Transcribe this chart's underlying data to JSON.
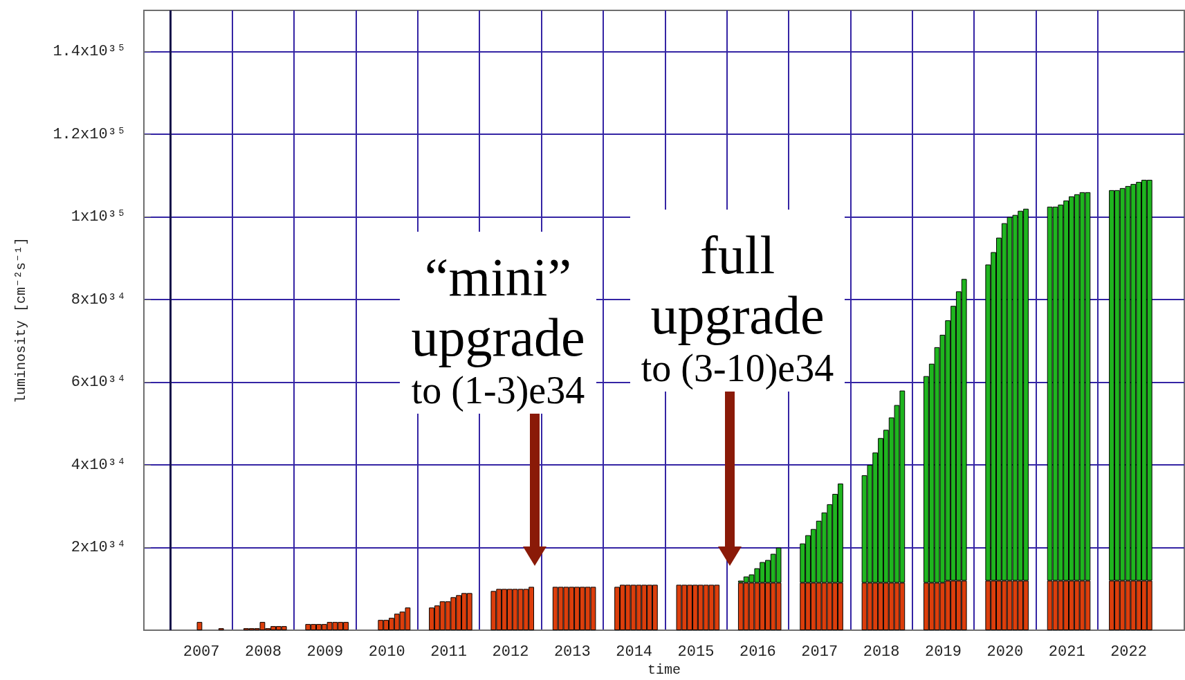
{
  "chart_data": {
    "type": "bar",
    "stacked": true,
    "xlabel": "time",
    "ylabel": "luminosity [cm⁻²s⁻¹]",
    "x": [
      2007.47,
      2007.82,
      2008.225,
      2008.313,
      2008.4,
      2008.488,
      2008.575,
      2008.663,
      2008.75,
      2008.838,
      2009.225,
      2009.313,
      2009.4,
      2009.488,
      2009.575,
      2009.663,
      2009.75,
      2009.838,
      2010.4,
      2010.488,
      2010.575,
      2010.663,
      2010.75,
      2010.838,
      2011.225,
      2011.313,
      2011.4,
      2011.488,
      2011.575,
      2011.663,
      2011.75,
      2011.838,
      2012.225,
      2012.313,
      2012.4,
      2012.488,
      2012.575,
      2012.663,
      2012.75,
      2012.838,
      2013.225,
      2013.313,
      2013.4,
      2013.488,
      2013.575,
      2013.663,
      2013.75,
      2013.838,
      2014.225,
      2014.313,
      2014.4,
      2014.488,
      2014.575,
      2014.663,
      2014.75,
      2014.838,
      2015.225,
      2015.313,
      2015.4,
      2015.488,
      2015.575,
      2015.663,
      2015.75,
      2015.838,
      2016.225,
      2016.313,
      2016.4,
      2016.488,
      2016.575,
      2016.663,
      2016.75,
      2016.838,
      2017.225,
      2017.313,
      2017.4,
      2017.488,
      2017.575,
      2017.663,
      2017.75,
      2017.838,
      2018.225,
      2018.313,
      2018.4,
      2018.488,
      2018.575,
      2018.663,
      2018.75,
      2018.838,
      2019.225,
      2019.313,
      2019.4,
      2019.488,
      2019.575,
      2019.663,
      2019.75,
      2019.838,
      2020.225,
      2020.313,
      2020.4,
      2020.488,
      2020.575,
      2020.663,
      2020.75,
      2020.838,
      2021.225,
      2021.313,
      2021.4,
      2021.488,
      2021.575,
      2021.663,
      2021.75,
      2021.838,
      2022.225,
      2022.313,
      2022.4,
      2022.488,
      2022.575,
      2022.663,
      2022.75,
      2022.838
    ],
    "series": [
      {
        "color": "#dc3e0c",
        "values": [
          2e+33,
          5e+32,
          5e+32,
          5e+32,
          5e+32,
          2e+33,
          5e+32,
          1e+33,
          1e+33,
          1e+33,
          1.5e+33,
          1.5e+33,
          1.5e+33,
          1.5e+33,
          2e+33,
          2e+33,
          2e+33,
          2e+33,
          2.5e+33,
          2.5e+33,
          3e+33,
          4e+33,
          4.5e+33,
          5.5e+33,
          5.5e+33,
          6e+33,
          7e+33,
          7e+33,
          8e+33,
          8.5e+33,
          9e+33,
          9e+33,
          9.5e+33,
          1e+34,
          1e+34,
          1e+34,
          1e+34,
          1e+34,
          1e+34,
          1.05e+34,
          1.05e+34,
          1.05e+34,
          1.05e+34,
          1.05e+34,
          1.05e+34,
          1.05e+34,
          1.05e+34,
          1.05e+34,
          1.05e+34,
          1.1e+34,
          1.1e+34,
          1.1e+34,
          1.1e+34,
          1.1e+34,
          1.1e+34,
          1.1e+34,
          1.1e+34,
          1.1e+34,
          1.1e+34,
          1.1e+34,
          1.1e+34,
          1.1e+34,
          1.1e+34,
          1.1e+34,
          1.15e+34,
          1.15e+34,
          1.15e+34,
          1.15e+34,
          1.15e+34,
          1.15e+34,
          1.15e+34,
          1.15e+34,
          1.15e+34,
          1.15e+34,
          1.15e+34,
          1.15e+34,
          1.15e+34,
          1.15e+34,
          1.15e+34,
          1.15e+34,
          1.15e+34,
          1.15e+34,
          1.15e+34,
          1.15e+34,
          1.15e+34,
          1.15e+34,
          1.15e+34,
          1.15e+34,
          1.15e+34,
          1.15e+34,
          1.15e+34,
          1.15e+34,
          1.2e+34,
          1.2e+34,
          1.2e+34,
          1.2e+34,
          1.2e+34,
          1.2e+34,
          1.2e+34,
          1.2e+34,
          1.2e+34,
          1.2e+34,
          1.2e+34,
          1.2e+34,
          1.2e+34,
          1.2e+34,
          1.2e+34,
          1.2e+34,
          1.2e+34,
          1.2e+34,
          1.2e+34,
          1.2e+34,
          1.2e+34,
          1.2e+34,
          1.2e+34,
          1.2e+34,
          1.2e+34,
          1.2e+34,
          1.2e+34,
          1.2e+34
        ]
      },
      {
        "color": "#1fb51f",
        "values": [
          null,
          null,
          null,
          null,
          null,
          null,
          null,
          null,
          null,
          null,
          null,
          null,
          null,
          null,
          null,
          null,
          null,
          null,
          null,
          null,
          null,
          null,
          null,
          null,
          null,
          null,
          null,
          null,
          null,
          null,
          null,
          null,
          null,
          null,
          null,
          null,
          null,
          null,
          null,
          null,
          null,
          null,
          null,
          null,
          null,
          null,
          null,
          null,
          null,
          null,
          null,
          null,
          null,
          null,
          null,
          null,
          null,
          null,
          null,
          null,
          null,
          null,
          null,
          null,
          5e+32,
          1.5e+33,
          2e+33,
          3.5e+33,
          5e+33,
          5.5e+33,
          7e+33,
          8.5e+33,
          9.5e+33,
          1.15e+34,
          1.3e+34,
          1.5e+34,
          1.7e+34,
          1.9e+34,
          2.15e+34,
          2.4e+34,
          2.6e+34,
          2.85e+34,
          3.15e+34,
          3.5e+34,
          3.7e+34,
          4e+34,
          4.3e+34,
          4.65e+34,
          5e+34,
          5.3e+34,
          5.7e+34,
          6e+34,
          6.3e+34,
          6.65e+34,
          7e+34,
          7.3e+34,
          7.65e+34,
          7.95e+34,
          8.3e+34,
          8.65e+34,
          8.8e+34,
          8.85e+34,
          8.95e+34,
          9e+34,
          9.05e+34,
          9.05e+34,
          9.1e+34,
          9.2e+34,
          9.3e+34,
          9.35e+34,
          9.4e+34,
          9.4e+34,
          9.45e+34,
          9.45e+34,
          9.5e+34,
          9.55e+34,
          9.6e+34,
          9.65e+34,
          9.7e+34,
          9.7e+34
        ]
      }
    ],
    "xlim": [
      2006.57,
      2023.4
    ],
    "xticks": [
      {
        "value": 2007,
        "label": null
      },
      {
        "value": 2007.5,
        "label": "2007"
      },
      {
        "value": 2008,
        "label": null
      },
      {
        "value": 2008.5,
        "label": "2008"
      },
      {
        "value": 2009,
        "label": null
      },
      {
        "value": 2009.5,
        "label": "2009"
      },
      {
        "value": 2010,
        "label": null
      },
      {
        "value": 2010.5,
        "label": "2010"
      },
      {
        "value": 2011,
        "label": null
      },
      {
        "value": 2011.5,
        "label": "2011"
      },
      {
        "value": 2012,
        "label": null
      },
      {
        "value": 2012.5,
        "label": "2012"
      },
      {
        "value": 2013,
        "label": null
      },
      {
        "value": 2013.5,
        "label": "2013"
      },
      {
        "value": 2014,
        "label": null
      },
      {
        "value": 2014.5,
        "label": "2014"
      },
      {
        "value": 2015,
        "label": null
      },
      {
        "value": 2015.5,
        "label": "2015"
      },
      {
        "value": 2016,
        "label": null
      },
      {
        "value": 2016.5,
        "label": "2016"
      },
      {
        "value": 2017,
        "label": null
      },
      {
        "value": 2017.5,
        "label": "2017"
      },
      {
        "value": 2018,
        "label": null
      },
      {
        "value": 2018.5,
        "label": "2018"
      },
      {
        "value": 2019,
        "label": null
      },
      {
        "value": 2019.5,
        "label": "2019"
      },
      {
        "value": 2020,
        "label": null
      },
      {
        "value": 2020.5,
        "label": "2020"
      },
      {
        "value": 2021,
        "label": null
      },
      {
        "value": 2021.5,
        "label": "2021"
      },
      {
        "value": 2022,
        "label": null
      },
      {
        "value": 2022.5,
        "label": "2022"
      }
    ],
    "ylim": [
      0,
      1.5e+35
    ],
    "yticks": [
      {
        "value": 2e+34,
        "label": "2x10³⁴"
      },
      {
        "value": 4e+34,
        "label": "4x10³⁴"
      },
      {
        "value": 6e+34,
        "label": "6x10³⁴"
      },
      {
        "value": 8e+34,
        "label": "8x10³⁴"
      },
      {
        "value": 1e+35,
        "label": "1x10³⁵"
      },
      {
        "value": 1.2e+35,
        "label": "1.2x10³⁵"
      },
      {
        "value": 1.4e+35,
        "label": "1.4x10³⁵"
      }
    ],
    "grid": true,
    "ref_lines": [
      {
        "axis": "x",
        "value": 2007,
        "color": "#14104a"
      }
    ],
    "annotations": [
      "“mini”\nupgrade\nto (1-3)e34",
      "full\nupgrade\nto (3-10)e34"
    ]
  }
}
